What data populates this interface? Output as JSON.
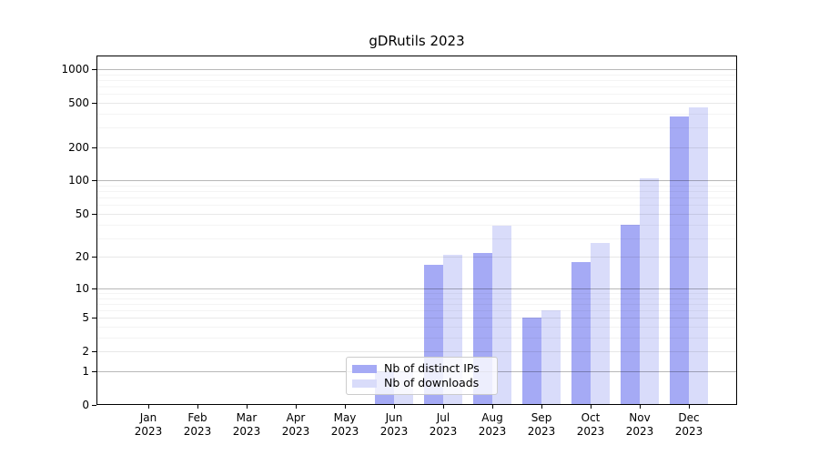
{
  "chart_data": {
    "type": "bar",
    "title": "gDRutils 2023",
    "x_months": [
      "Jan",
      "Feb",
      "Mar",
      "Apr",
      "May",
      "Jun",
      "Jul",
      "Aug",
      "Sep",
      "Oct",
      "Nov",
      "Dec"
    ],
    "x_year": "2023",
    "categories": [
      "Jan 2023",
      "Feb 2023",
      "Mar 2023",
      "Apr 2023",
      "May 2023",
      "Jun 2023",
      "Jul 2023",
      "Aug 2023",
      "Sep 2023",
      "Oct 2023",
      "Nov 2023",
      "Dec 2023"
    ],
    "series": [
      {
        "name": "Nb of distinct IPs",
        "color": "#a5aaf5",
        "values": [
          0,
          0,
          0,
          0,
          0,
          1,
          17,
          22,
          5,
          18,
          40,
          380
        ]
      },
      {
        "name": "Nb of downloads",
        "color": "#d9dcfa",
        "values": [
          0,
          0,
          0,
          0,
          0,
          1,
          21,
          39,
          6,
          27,
          105,
          455
        ]
      }
    ],
    "y_scale": "log10(value+1)",
    "y_tick_labels": [
      0,
      1,
      2,
      5,
      10,
      20,
      50,
      100,
      200,
      500,
      1000
    ],
    "y_major_gridlines": [
      1,
      10,
      100,
      1000
    ],
    "y_minor_gridlines": [
      3,
      4,
      6,
      7,
      8,
      9,
      30,
      40,
      60,
      70,
      80,
      90,
      300,
      400,
      600,
      700,
      800,
      900
    ],
    "ylim": [
      0,
      1500
    ],
    "xlabel": "",
    "ylabel": "",
    "grid": true,
    "legend_position": "inside-bottom-center",
    "background_color": "#ffffff",
    "spine_color": "#000000"
  }
}
